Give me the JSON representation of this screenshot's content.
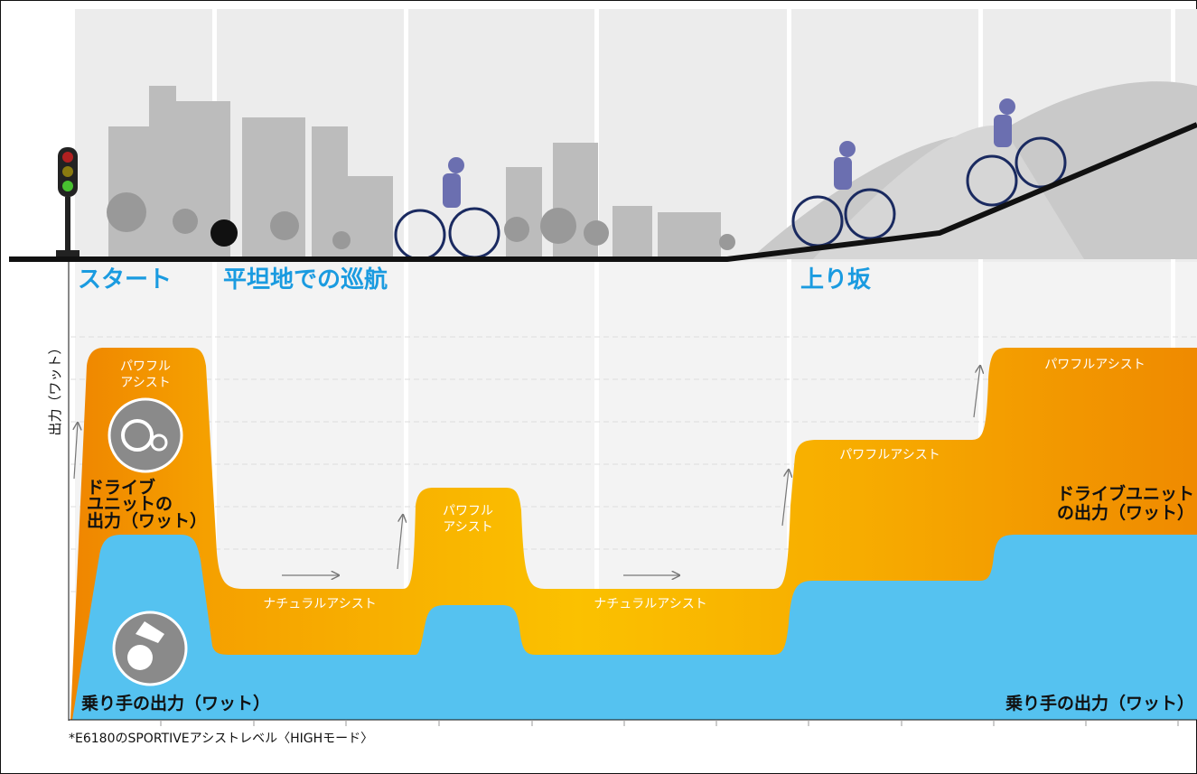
{
  "sections": [
    "スタート",
    "平坦地での巡航",
    "上り坂"
  ],
  "y_axis_label": "出力（ワット）",
  "assist_labels": [
    {
      "lines": [
        "パワフル",
        "アシスト"
      ]
    },
    {
      "lines": [
        "ナチュラルアシスト"
      ]
    },
    {
      "lines": [
        "パワフル",
        "アシスト"
      ]
    },
    {
      "lines": [
        "ナチュラルアシスト"
      ]
    },
    {
      "lines": [
        "パワフルアシスト"
      ]
    },
    {
      "lines": [
        "パワフルアシスト"
      ]
    }
  ],
  "drive_unit_labels": [
    {
      "lines": [
        "ドライブ",
        "ユニットの",
        "出力（ワット）"
      ]
    },
    {
      "lines": [
        "ドライブユニット",
        "の出力（ワット）"
      ]
    }
  ],
  "rider_labels": [
    "乗り手の出力（ワット）",
    "乗り手の出力（ワット）"
  ],
  "footnote": "*E6180のSPORTIVEアシストレベル〈HIGHモード〉"
}
